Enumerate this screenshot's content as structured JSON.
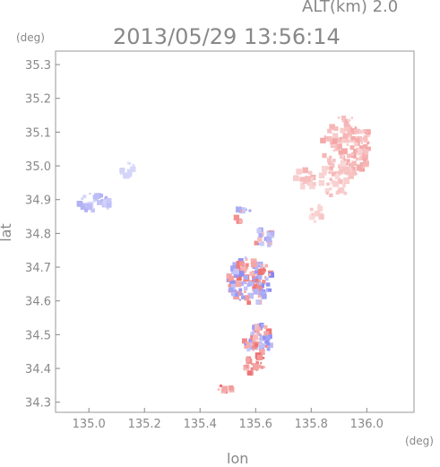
{
  "header": {
    "altitude_label": "ALT(km) 2.0",
    "timestamp": "2013/05/29 13:56:14"
  },
  "chart_data": {
    "type": "heatmap",
    "title": "2013/05/29 13:56:14",
    "annotation": "ALT(km) 2.0",
    "xlabel": "lon",
    "ylabel": "lat",
    "x_unit": "(deg)",
    "y_unit": "(deg)",
    "xlim": [
      134.88,
      136.17
    ],
    "ylim": [
      34.27,
      35.34
    ],
    "x_ticks": [
      135.0,
      135.2,
      135.4,
      135.6,
      135.8,
      136.0
    ],
    "x_tick_labels": [
      "135.0",
      "135.2",
      "135.4",
      "135.6",
      "135.8",
      "136.0"
    ],
    "y_ticks": [
      34.3,
      34.4,
      34.5,
      34.6,
      34.7,
      34.8,
      34.9,
      35.0,
      35.1,
      35.2,
      35.3
    ],
    "y_tick_labels": [
      "34.3",
      "34.4",
      "34.5",
      "34.6",
      "34.7",
      "34.8",
      "34.9",
      "35.0",
      "35.1",
      "35.2",
      "35.3"
    ],
    "grid": false,
    "colors": {
      "positive": "#f08080",
      "positive_light": "#f8c8c8",
      "negative": "#8080f0",
      "negative_light": "#c8c8f4",
      "axis": "#888888"
    },
    "clusters": [
      {
        "lon": 135.93,
        "lat": 35.06,
        "rx": 0.09,
        "ry": 0.09,
        "n": 140,
        "sign": 1,
        "intensity": 0.35
      },
      {
        "lon": 135.89,
        "lat": 34.96,
        "rx": 0.06,
        "ry": 0.05,
        "n": 45,
        "sign": 1,
        "intensity": 0.25
      },
      {
        "lon": 135.78,
        "lat": 34.96,
        "rx": 0.04,
        "ry": 0.03,
        "n": 18,
        "sign": 1,
        "intensity": 0.3
      },
      {
        "lon": 135.82,
        "lat": 34.86,
        "rx": 0.03,
        "ry": 0.03,
        "n": 14,
        "sign": 1,
        "intensity": 0.2
      },
      {
        "lon": 135.02,
        "lat": 34.89,
        "rx": 0.06,
        "ry": 0.03,
        "n": 40,
        "sign": -1,
        "intensity": 0.35
      },
      {
        "lon": 135.14,
        "lat": 34.99,
        "rx": 0.03,
        "ry": 0.02,
        "n": 14,
        "sign": -1,
        "intensity": 0.15
      },
      {
        "lon": 135.58,
        "lat": 34.66,
        "rx": 0.08,
        "ry": 0.07,
        "n": 130,
        "sign": 0,
        "intensity": 0.6
      },
      {
        "lon": 135.61,
        "lat": 34.48,
        "rx": 0.05,
        "ry": 0.05,
        "n": 70,
        "sign": 0,
        "intensity": 0.6
      },
      {
        "lon": 135.6,
        "lat": 34.41,
        "rx": 0.04,
        "ry": 0.03,
        "n": 30,
        "sign": 1,
        "intensity": 0.6
      },
      {
        "lon": 135.63,
        "lat": 34.79,
        "rx": 0.04,
        "ry": 0.03,
        "n": 20,
        "sign": 0,
        "intensity": 0.5
      },
      {
        "lon": 135.56,
        "lat": 34.85,
        "rx": 0.03,
        "ry": 0.03,
        "n": 8,
        "sign": 0,
        "intensity": 0.5
      },
      {
        "lon": 135.49,
        "lat": 34.34,
        "rx": 0.03,
        "ry": 0.01,
        "n": 8,
        "sign": 1,
        "intensity": 0.6
      }
    ]
  }
}
